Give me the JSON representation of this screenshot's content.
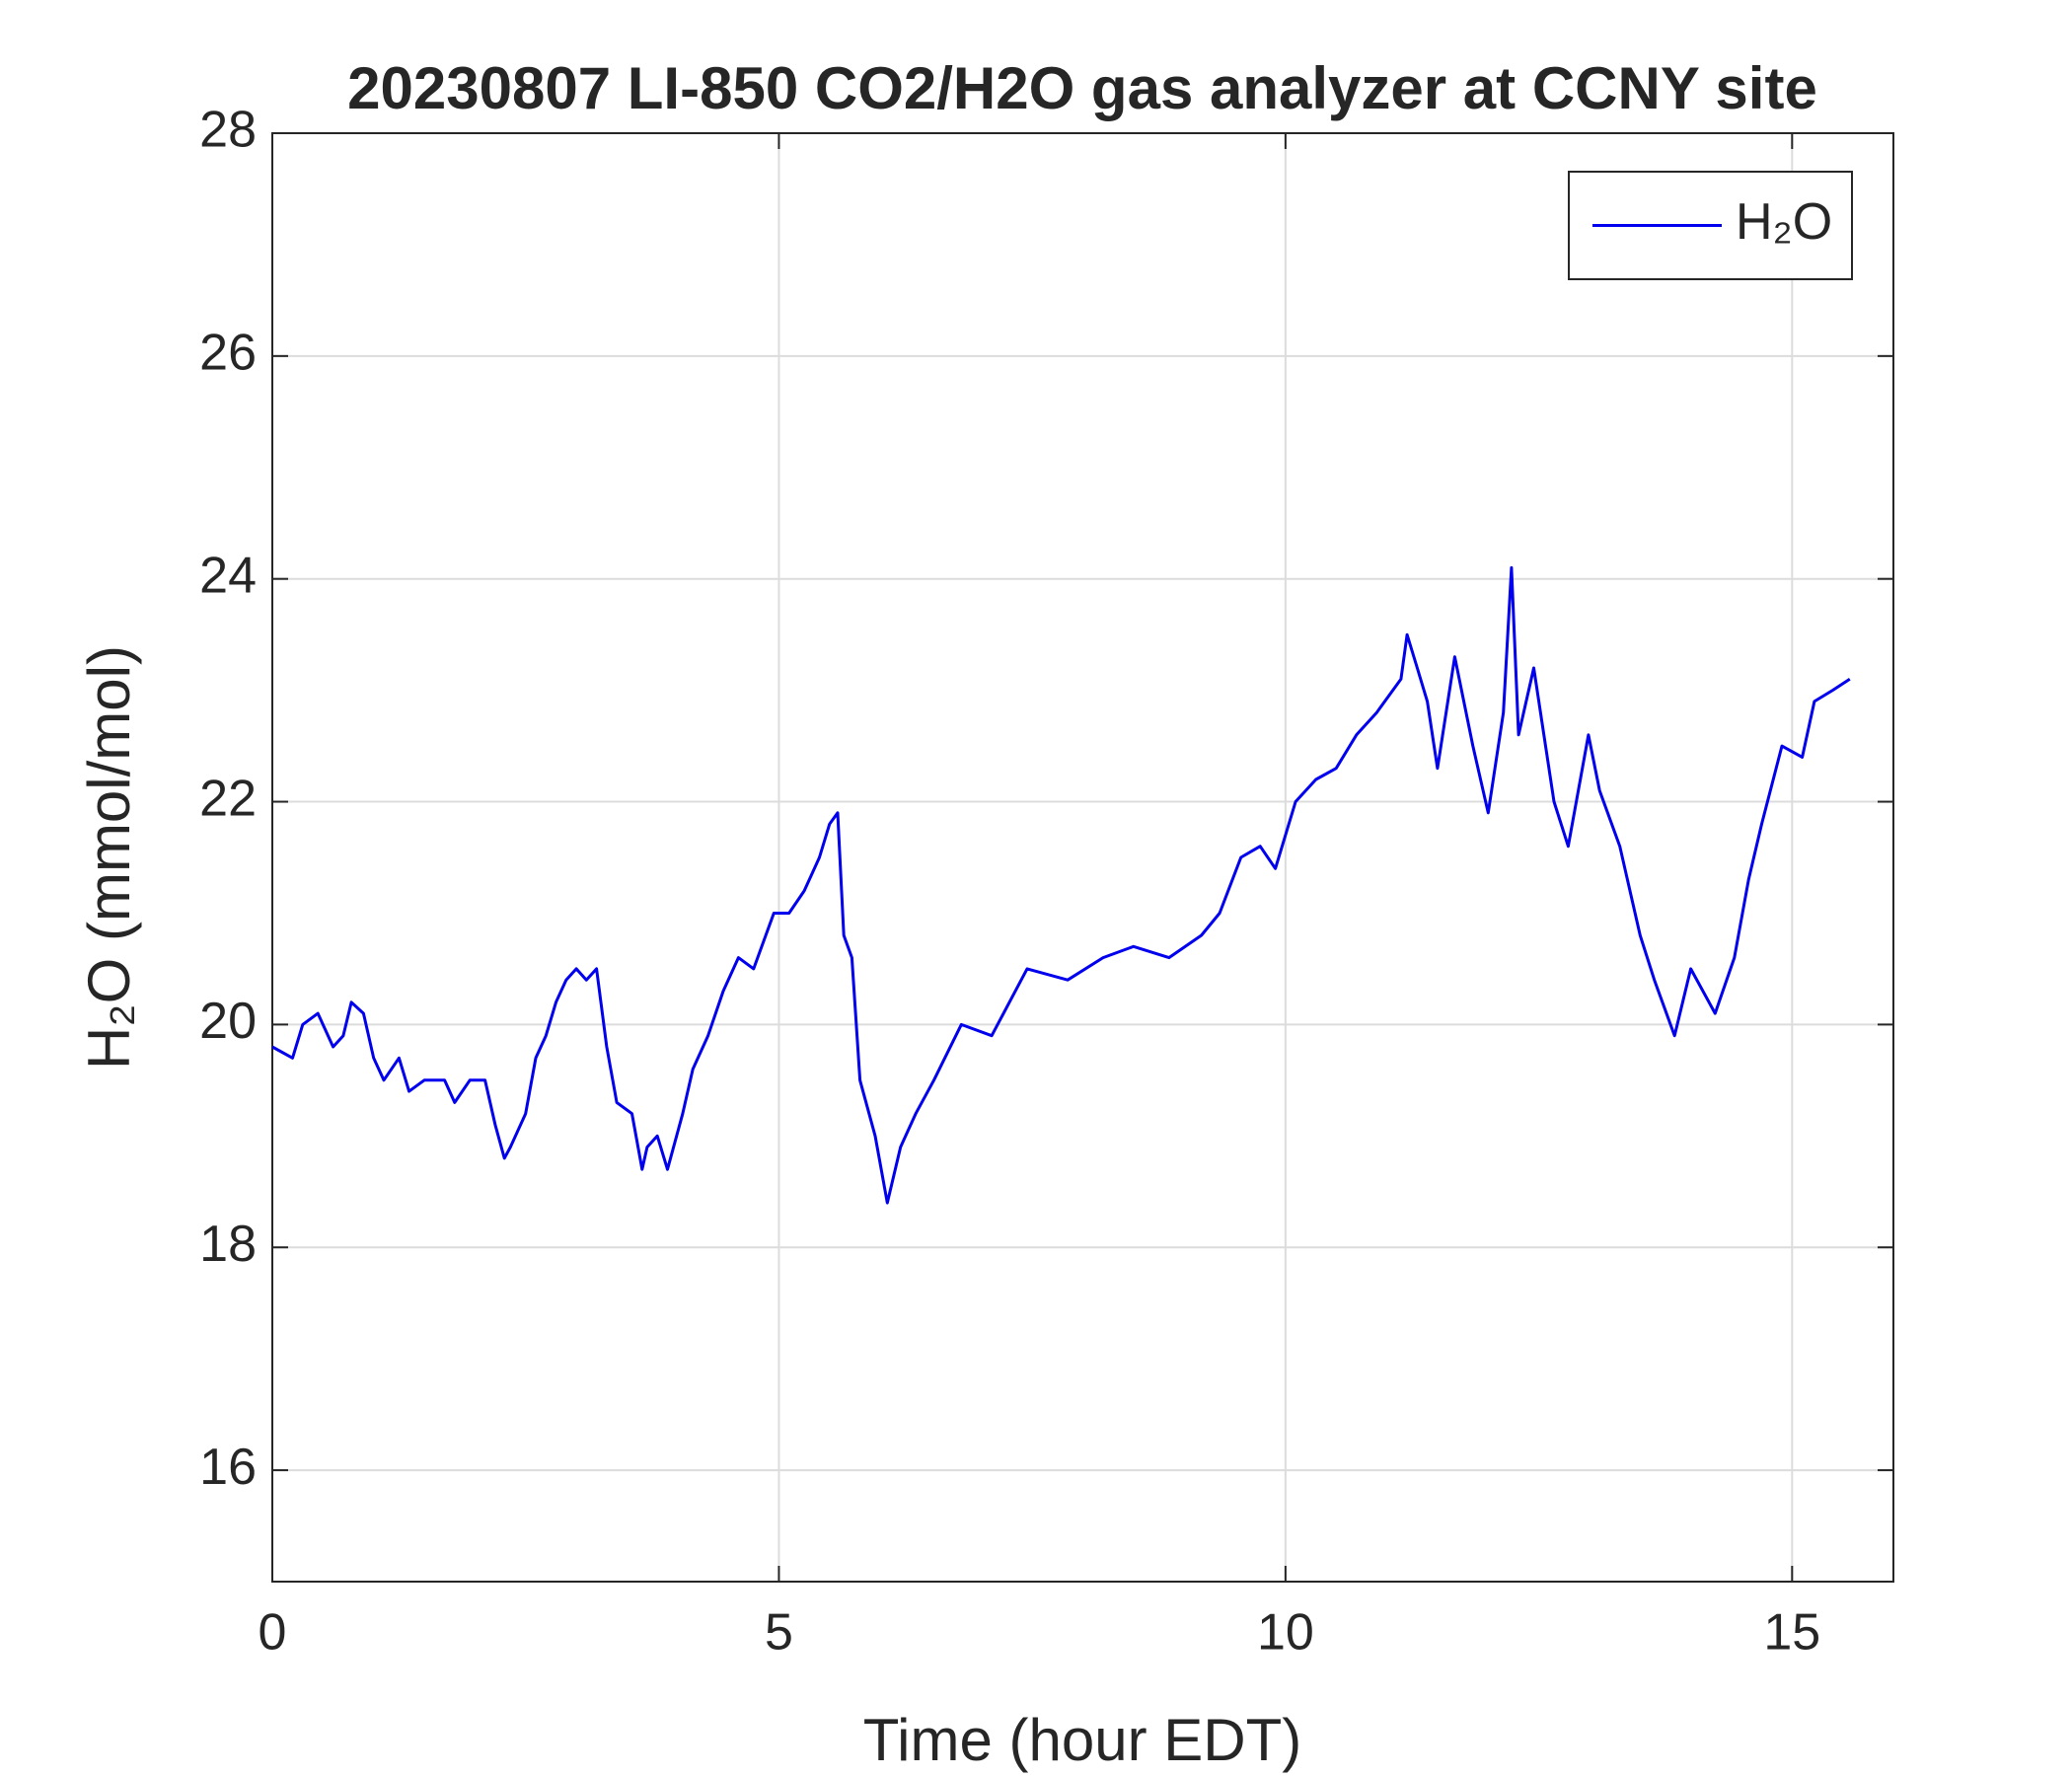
{
  "chart_data": {
    "type": "line",
    "title": "20230807 LI-850 CO2/H2O gas analyzer at CCNY site",
    "xlabel": "Time (hour EDT)",
    "ylabel": "H₂O (mmol/mol)",
    "xlim": [
      0,
      16
    ],
    "xticks": [
      0,
      5,
      10,
      15
    ],
    "ylim": [
      15,
      28
    ],
    "yticks": [
      16,
      18,
      20,
      22,
      24,
      26,
      28
    ],
    "grid": true,
    "legend": "upper right",
    "x": [
      0,
      0.2,
      0.3,
      0.45,
      0.6,
      0.7,
      0.78,
      0.9,
      1.0,
      1.1,
      1.25,
      1.35,
      1.5,
      1.7,
      1.8,
      1.95,
      2.1,
      2.2,
      2.29,
      2.35,
      2.5,
      2.6,
      2.7,
      2.8,
      2.9,
      3.0,
      3.1,
      3.2,
      3.3,
      3.4,
      3.55,
      3.65,
      3.7,
      3.8,
      3.9,
      4.05,
      4.15,
      4.3,
      4.45,
      4.6,
      4.75,
      4.95,
      5.1,
      5.25,
      5.4,
      5.5,
      5.58,
      5.64,
      5.72,
      5.8,
      5.95,
      6.07,
      6.2,
      6.35,
      6.53,
      6.8,
      7.1,
      7.45,
      7.85,
      8.2,
      8.5,
      8.85,
      9.17,
      9.35,
      9.56,
      9.75,
      9.9,
      10.1,
      10.3,
      10.5,
      10.7,
      10.9,
      11.14,
      11.2,
      11.3,
      11.4,
      11.5,
      11.67,
      11.85,
      12.0,
      12.15,
      12.23,
      12.3,
      12.45,
      12.65,
      12.79,
      12.99,
      13.1,
      13.3,
      13.5,
      13.64,
      13.84,
      14.0,
      14.24,
      14.43,
      14.57,
      14.7,
      14.9,
      15.1,
      15.22,
      15.4,
      15.57
    ],
    "series": [
      {
        "name": "H₂O",
        "color": "#0000ee",
        "values": [
          19.8,
          19.7,
          20.0,
          20.1,
          19.8,
          19.9,
          20.2,
          20.1,
          19.7,
          19.5,
          19.7,
          19.4,
          19.5,
          19.5,
          19.3,
          19.5,
          19.5,
          19.1,
          18.8,
          18.9,
          19.2,
          19.7,
          19.9,
          20.2,
          20.4,
          20.5,
          20.4,
          20.5,
          19.8,
          19.3,
          19.2,
          18.7,
          18.9,
          19.0,
          18.7,
          19.2,
          19.6,
          19.9,
          20.3,
          20.6,
          20.5,
          21.0,
          21.0,
          21.2,
          21.5,
          21.8,
          21.9,
          20.8,
          20.6,
          19.5,
          19.0,
          18.4,
          18.9,
          19.2,
          19.5,
          20.0,
          19.9,
          20.5,
          20.4,
          20.6,
          20.7,
          20.6,
          20.8,
          21.0,
          21.5,
          21.6,
          21.4,
          22.0,
          22.2,
          22.3,
          22.6,
          22.8,
          23.1,
          23.5,
          23.2,
          22.9,
          22.3,
          23.3,
          22.5,
          21.9,
          22.8,
          24.1,
          22.6,
          23.2,
          22.0,
          21.6,
          22.6,
          22.1,
          21.6,
          20.8,
          20.4,
          19.9,
          20.5,
          20.1,
          20.6,
          21.3,
          21.8,
          22.5,
          22.4,
          22.9,
          23.0,
          23.1
        ]
      }
    ]
  }
}
